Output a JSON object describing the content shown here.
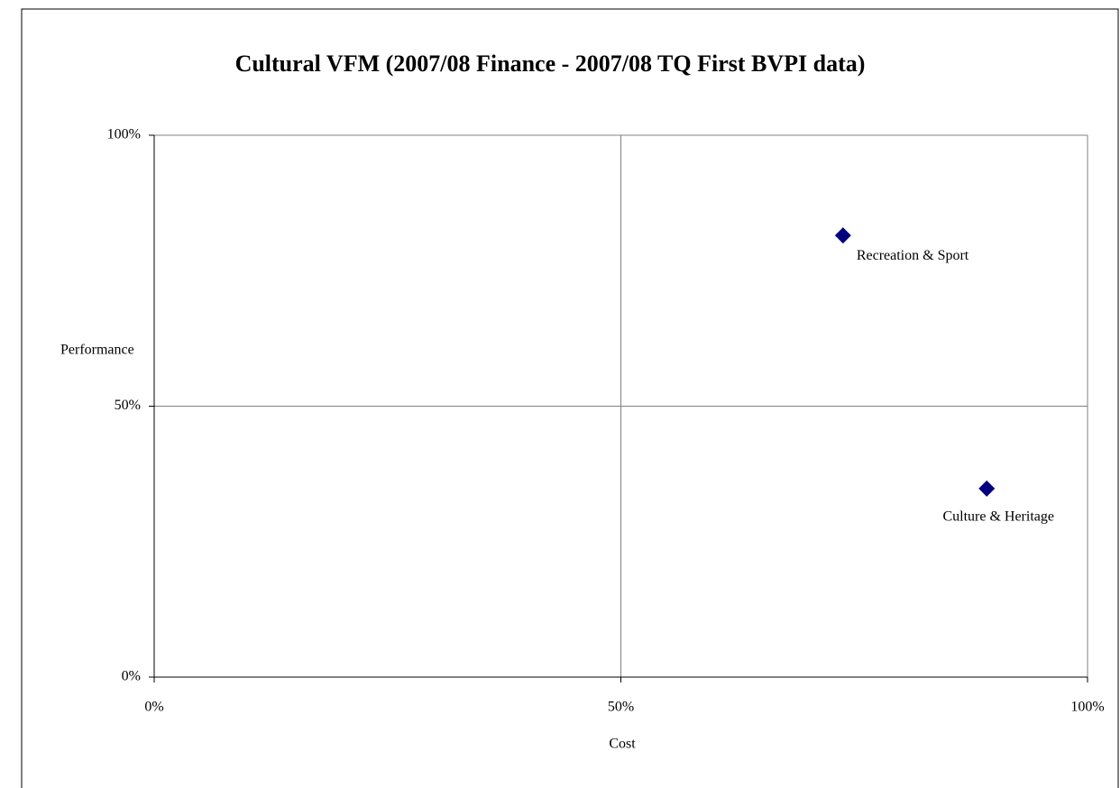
{
  "chart_data": {
    "type": "scatter",
    "title": "Cultural  VFM (2007/08 Finance - 2007/08 TQ First BVPI data)",
    "xlabel": "Cost",
    "ylabel": "Performance",
    "series": [
      {
        "color": "#000080",
        "x": [
          73.8,
          89.2
        ],
        "values": [
          81.5,
          34.8
        ],
        "point_labels": [
          "Recreation & Sport",
          "Culture & Heritage"
        ]
      }
    ],
    "xlim": [
      0,
      100
    ],
    "ylim": [
      0,
      100
    ],
    "xticks": [
      {
        "value": 0,
        "label": "0%"
      },
      {
        "value": 50,
        "label": "50%"
      },
      {
        "value": 100,
        "label": "100%"
      }
    ],
    "yticks": [
      {
        "value": 0,
        "label": "0%"
      },
      {
        "value": 50,
        "label": "50%"
      },
      {
        "value": 100,
        "label": "100%"
      }
    ],
    "grid": true
  }
}
